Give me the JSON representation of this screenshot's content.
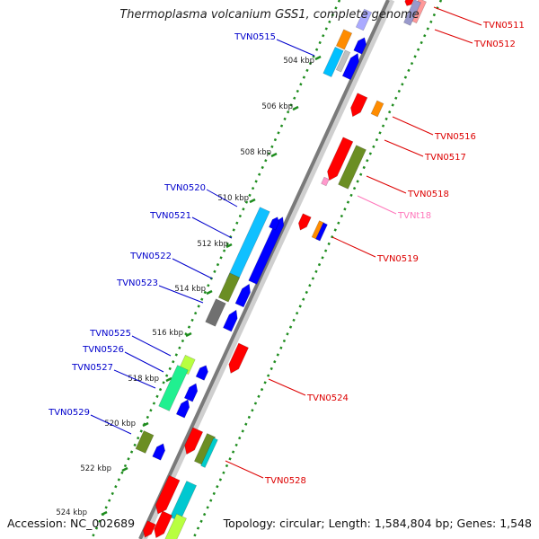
{
  "title": "Thermoplasma volcanium GSS1, complete genome",
  "accession": "Accession: NC_002689",
  "topology": "Topology: circular; Length: 1,584,804 bp; Genes: 1,548",
  "colors": {
    "backbone": "#808080",
    "dots": "#1e8c1e",
    "forward_label": "#0000cc",
    "reverse_label": "#dd0000",
    "rna_label": "#ff77bb"
  },
  "ticks": [
    "504 kbp",
    "506 kbp",
    "508 kbp",
    "510 kbp",
    "512 kbp",
    "514 kbp",
    "516 kbp",
    "518 kbp",
    "520 kbp",
    "522 kbp",
    "524 kbp"
  ],
  "forward_labels": [
    "TVN0515",
    "TVN0520",
    "TVN0521",
    "TVN0522",
    "TVN0523",
    "TVN0525",
    "TVN0526",
    "TVN0527",
    "TVN0529"
  ],
  "reverse_labels": [
    "TVN0511",
    "TVN0512",
    "TVN0516",
    "TVN0517",
    "TVN0518",
    "TVNt18",
    "TVN0519",
    "TVN0524",
    "TVN0528"
  ]
}
